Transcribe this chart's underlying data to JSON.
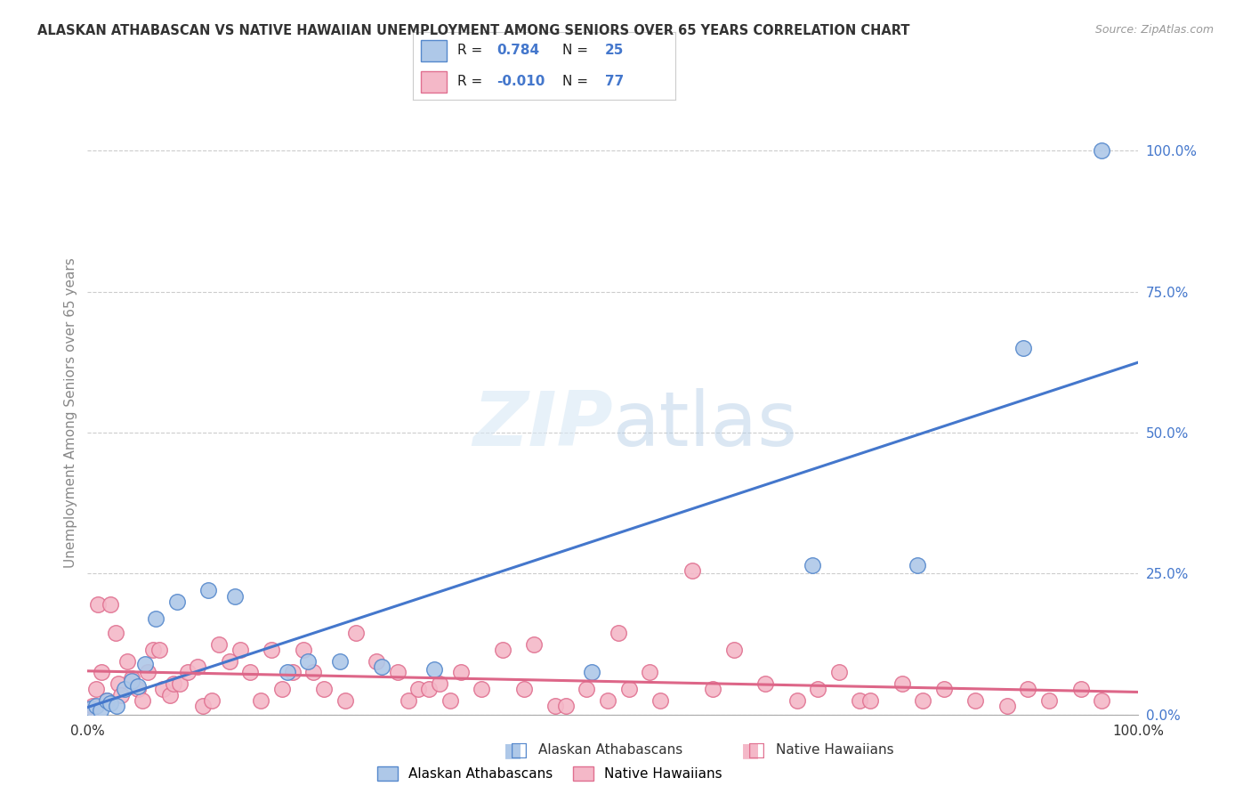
{
  "title": "ALASKAN ATHABASCAN VS NATIVE HAWAIIAN UNEMPLOYMENT AMONG SENIORS OVER 65 YEARS CORRELATION CHART",
  "source": "Source: ZipAtlas.com",
  "ylabel": "Unemployment Among Seniors over 65 years",
  "ytick_labels": [
    "0.0%",
    "25.0%",
    "50.0%",
    "75.0%",
    "100.0%"
  ],
  "ytick_values": [
    0,
    25,
    50,
    75,
    100
  ],
  "xlim": [
    0,
    100
  ],
  "ylim": [
    0,
    107
  ],
  "legend_r_blue": "0.784",
  "legend_n_blue": "25",
  "legend_r_pink": "-0.010",
  "legend_n_pink": "77",
  "blue_fill": "#aec8e8",
  "pink_fill": "#f4b8c8",
  "blue_edge": "#5588cc",
  "pink_edge": "#e07090",
  "line_blue_color": "#4477cc",
  "line_pink_color": "#dd6688",
  "blue_scatter": [
    [
      0.3,
      1.0
    ],
    [
      0.8,
      1.5
    ],
    [
      1.2,
      0.8
    ],
    [
      1.8,
      2.5
    ],
    [
      2.2,
      2.0
    ],
    [
      2.8,
      1.5
    ],
    [
      3.5,
      4.5
    ],
    [
      4.2,
      6.0
    ],
    [
      4.8,
      5.0
    ],
    [
      5.5,
      9.0
    ],
    [
      6.5,
      17.0
    ],
    [
      8.5,
      20.0
    ],
    [
      11.5,
      22.0
    ],
    [
      14.0,
      21.0
    ],
    [
      19.0,
      7.5
    ],
    [
      21.0,
      9.5
    ],
    [
      24.0,
      9.5
    ],
    [
      28.0,
      8.5
    ],
    [
      33.0,
      8.0
    ],
    [
      48.0,
      7.5
    ],
    [
      69.0,
      26.5
    ],
    [
      79.0,
      26.5
    ],
    [
      89.0,
      65.0
    ],
    [
      96.5,
      100.0
    ]
  ],
  "pink_scatter": [
    [
      0.2,
      0.3
    ],
    [
      0.5,
      1.5
    ],
    [
      0.8,
      4.5
    ],
    [
      1.0,
      19.5
    ],
    [
      1.3,
      7.5
    ],
    [
      1.8,
      2.5
    ],
    [
      2.2,
      19.5
    ],
    [
      2.7,
      14.5
    ],
    [
      2.9,
      5.5
    ],
    [
      3.2,
      3.5
    ],
    [
      3.8,
      9.5
    ],
    [
      4.2,
      6.5
    ],
    [
      4.8,
      4.5
    ],
    [
      5.2,
      2.5
    ],
    [
      5.7,
      7.5
    ],
    [
      6.2,
      11.5
    ],
    [
      6.8,
      11.5
    ],
    [
      7.2,
      4.5
    ],
    [
      7.8,
      3.5
    ],
    [
      8.2,
      5.5
    ],
    [
      8.8,
      5.5
    ],
    [
      9.5,
      7.5
    ],
    [
      10.5,
      8.5
    ],
    [
      11.0,
      1.5
    ],
    [
      11.8,
      2.5
    ],
    [
      12.5,
      12.5
    ],
    [
      13.5,
      9.5
    ],
    [
      14.5,
      11.5
    ],
    [
      15.5,
      7.5
    ],
    [
      16.5,
      2.5
    ],
    [
      17.5,
      11.5
    ],
    [
      18.5,
      4.5
    ],
    [
      19.5,
      7.5
    ],
    [
      20.5,
      11.5
    ],
    [
      21.5,
      7.5
    ],
    [
      22.5,
      4.5
    ],
    [
      24.5,
      2.5
    ],
    [
      25.5,
      14.5
    ],
    [
      27.5,
      9.5
    ],
    [
      29.5,
      7.5
    ],
    [
      30.5,
      2.5
    ],
    [
      31.5,
      4.5
    ],
    [
      32.5,
      4.5
    ],
    [
      33.5,
      5.5
    ],
    [
      34.5,
      2.5
    ],
    [
      35.5,
      7.5
    ],
    [
      37.5,
      4.5
    ],
    [
      39.5,
      11.5
    ],
    [
      41.5,
      4.5
    ],
    [
      42.5,
      12.5
    ],
    [
      44.5,
      1.5
    ],
    [
      45.5,
      1.5
    ],
    [
      47.5,
      4.5
    ],
    [
      49.5,
      2.5
    ],
    [
      50.5,
      14.5
    ],
    [
      51.5,
      4.5
    ],
    [
      53.5,
      7.5
    ],
    [
      54.5,
      2.5
    ],
    [
      57.5,
      25.5
    ],
    [
      59.5,
      4.5
    ],
    [
      61.5,
      11.5
    ],
    [
      64.5,
      5.5
    ],
    [
      67.5,
      2.5
    ],
    [
      69.5,
      4.5
    ],
    [
      71.5,
      7.5
    ],
    [
      73.5,
      2.5
    ],
    [
      74.5,
      2.5
    ],
    [
      77.5,
      5.5
    ],
    [
      79.5,
      2.5
    ],
    [
      81.5,
      4.5
    ],
    [
      84.5,
      2.5
    ],
    [
      87.5,
      1.5
    ],
    [
      89.5,
      4.5
    ],
    [
      91.5,
      2.5
    ],
    [
      94.5,
      4.5
    ],
    [
      96.5,
      2.5
    ]
  ],
  "watermark_zip": "ZIP",
  "watermark_atlas": "atlas",
  "background_color": "#ffffff",
  "grid_color": "#cccccc",
  "title_color": "#333333",
  "label_color": "#888888",
  "rn_text_color": "#222222",
  "rn_value_color": "#4477cc"
}
